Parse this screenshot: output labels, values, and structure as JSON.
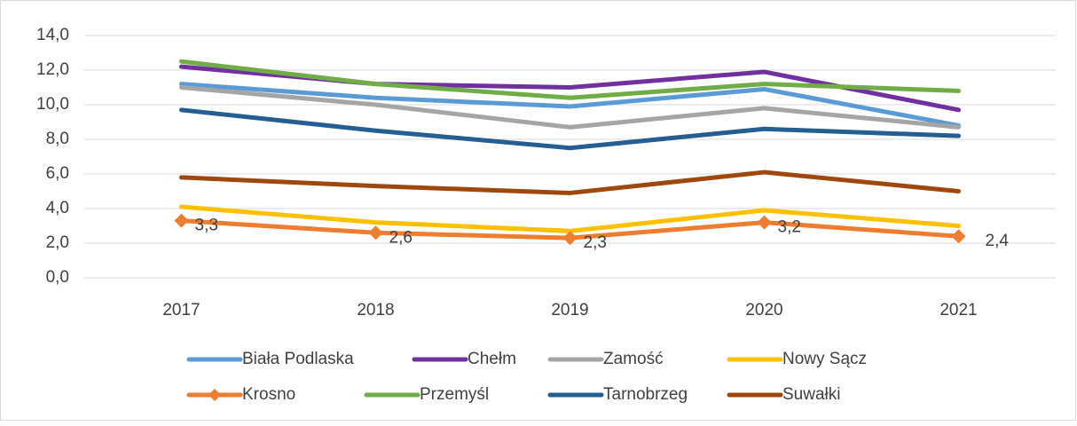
{
  "chart_data": {
    "type": "line",
    "categories": [
      "2017",
      "2018",
      "2019",
      "2020",
      "2021"
    ],
    "ylim": [
      0,
      14
    ],
    "yticks": [
      {
        "value": 0,
        "label": "0,0"
      },
      {
        "value": 2,
        "label": "2,0"
      },
      {
        "value": 4,
        "label": "4,0"
      },
      {
        "value": 6,
        "label": "6,0"
      },
      {
        "value": 8,
        "label": "8,0"
      },
      {
        "value": 10,
        "label": "10,0"
      },
      {
        "value": 12,
        "label": "12,0"
      },
      {
        "value": 14,
        "label": "14,0"
      }
    ],
    "grid": true,
    "legend": "bottom",
    "series": [
      {
        "name": "Biała Podlaska",
        "color": "#5b9bd5",
        "values": [
          11.2,
          10.4,
          9.9,
          10.9,
          8.8
        ]
      },
      {
        "name": "Chełm",
        "color": "#7030a0",
        "values": [
          12.2,
          11.2,
          11.0,
          11.9,
          9.7
        ]
      },
      {
        "name": "Zamość",
        "color": "#a5a5a5",
        "values": [
          11.0,
          10.0,
          8.7,
          9.8,
          8.7
        ]
      },
      {
        "name": "Nowy Sącz",
        "color": "#ffc000",
        "values": [
          4.1,
          3.2,
          2.7,
          3.9,
          3.0
        ]
      },
      {
        "name": "Krosno",
        "color": "#ed7d31",
        "marker": "diamond",
        "values": [
          3.3,
          2.6,
          2.3,
          3.2,
          2.4
        ],
        "value_labels": [
          "3,3",
          "2,6",
          "2,3",
          "3,2",
          "2,4"
        ]
      },
      {
        "name": "Przemyśl",
        "color": "#70ad47",
        "values": [
          12.5,
          11.2,
          10.4,
          11.2,
          10.8
        ]
      },
      {
        "name": "Tarnobrzeg",
        "color": "#255e91",
        "values": [
          9.7,
          8.5,
          7.5,
          8.6,
          8.2
        ]
      },
      {
        "name": "Suwałki",
        "color": "#9e480e",
        "values": [
          5.8,
          5.3,
          4.9,
          6.1,
          5.0
        ]
      }
    ]
  }
}
